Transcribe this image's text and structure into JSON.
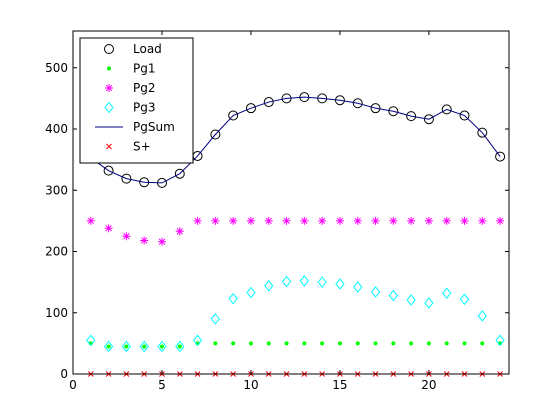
{
  "chart_data": {
    "type": "line",
    "title": "",
    "xlabel": "",
    "ylabel": "",
    "xlim": [
      0,
      24.5
    ],
    "ylim": [
      0,
      560
    ],
    "xticks": [
      0,
      5,
      10,
      15,
      20
    ],
    "yticks": [
      0,
      100,
      200,
      300,
      400,
      500
    ],
    "grid": false,
    "legend_position": "top-left",
    "x": [
      1,
      2,
      3,
      4,
      5,
      6,
      7,
      8,
      9,
      10,
      11,
      12,
      13,
      14,
      15,
      16,
      17,
      18,
      19,
      20,
      21,
      22,
      23,
      24
    ],
    "series": [
      {
        "name": "Load",
        "marker": "circle",
        "color": "#000000",
        "values": [
          353,
          332,
          319,
          313,
          312,
          327,
          356,
          391,
          422,
          434,
          444,
          450,
          452,
          450,
          447,
          442,
          434,
          429,
          421,
          416,
          432,
          422,
          394,
          355
        ]
      },
      {
        "name": "Pg1",
        "marker": "dot",
        "color": "#00ff00",
        "values": [
          50,
          45,
          45,
          45,
          45,
          45,
          50,
          50,
          50,
          50,
          50,
          50,
          50,
          50,
          50,
          50,
          50,
          50,
          50,
          50,
          50,
          50,
          50,
          50
        ]
      },
      {
        "name": "Pg2",
        "marker": "asterisk",
        "color": "#ff00ff",
        "values": [
          250,
          238,
          225,
          218,
          216,
          233,
          250,
          250,
          250,
          250,
          250,
          250,
          250,
          250,
          250,
          250,
          250,
          250,
          250,
          250,
          250,
          250,
          250,
          250
        ]
      },
      {
        "name": "Pg3",
        "marker": "diamond",
        "color": "#00ffff",
        "values": [
          55,
          45,
          45,
          45,
          45,
          45,
          55,
          90,
          123,
          133,
          144,
          151,
          152,
          150,
          147,
          142,
          134,
          128,
          121,
          116,
          132,
          122,
          95,
          55
        ]
      },
      {
        "name": "PgSum",
        "marker": "line",
        "color": "#00007f",
        "values": [
          353,
          332,
          319,
          313,
          312,
          327,
          356,
          391,
          422,
          434,
          444,
          450,
          452,
          450,
          447,
          442,
          434,
          429,
          421,
          416,
          432,
          422,
          394,
          355
        ]
      },
      {
        "name": "S+",
        "marker": "x",
        "color": "#ff0000",
        "values": [
          0,
          0,
          0,
          0,
          0,
          0,
          0,
          0,
          0,
          0,
          0,
          0,
          0,
          0,
          0,
          0,
          0,
          0,
          0,
          0,
          0,
          0,
          0,
          0
        ]
      }
    ]
  }
}
